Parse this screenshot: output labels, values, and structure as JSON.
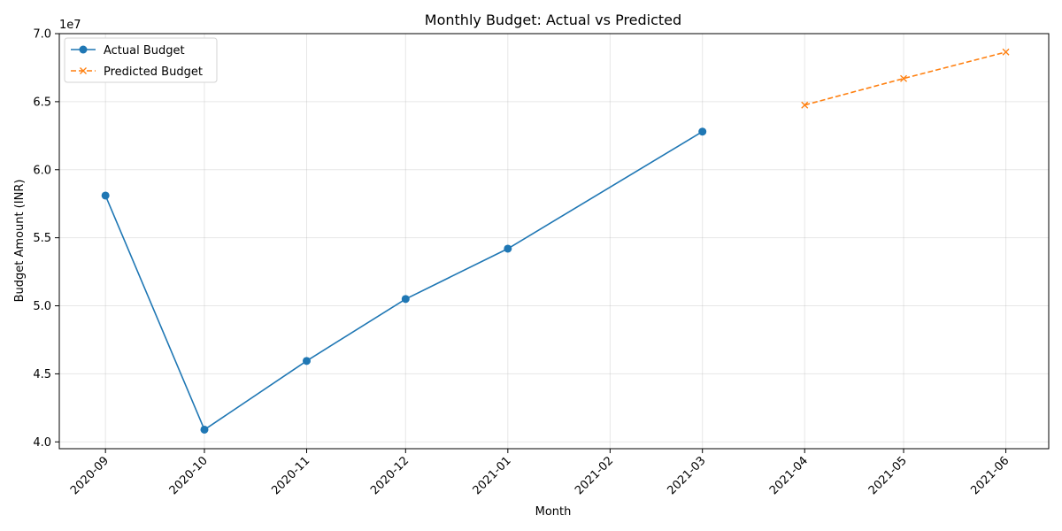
{
  "chart_data": {
    "type": "line",
    "title": "Monthly Budget: Actual vs Predicted",
    "xlabel": "Month",
    "ylabel": "Budget Amount (INR)",
    "y_offset_label": "1e7",
    "x_ticks": [
      "2020-09",
      "2020-10",
      "2020-11",
      "2020-12",
      "2021-01",
      "2021-02",
      "2021-03",
      "2021-04",
      "2021-05",
      "2021-06"
    ],
    "x_range": [
      "2020-08-18",
      "2021-06-14"
    ],
    "y_ticks": [
      "4.0",
      "4.5",
      "5.0",
      "5.5",
      "6.0",
      "6.5",
      "7.0"
    ],
    "ylim": [
      39500000,
      70000000
    ],
    "grid": true,
    "legend_position": "top-left",
    "series": [
      {
        "name": "Actual Budget",
        "color": "#1f77b4",
        "linestyle": "solid",
        "marker": "circle",
        "points": [
          {
            "x": "2020-09-01",
            "y": 58100000
          },
          {
            "x": "2020-10-01",
            "y": 40900000
          },
          {
            "x": "2020-11-01",
            "y": 45950000
          },
          {
            "x": "2020-12-01",
            "y": 50500000
          },
          {
            "x": "2021-01-01",
            "y": 54200000
          },
          {
            "x": "2021-03-01",
            "y": 62800000
          }
        ]
      },
      {
        "name": "Predicted Budget",
        "color": "#ff7f0e",
        "linestyle": "dashed",
        "marker": "x",
        "points": [
          {
            "x": "2021-04-01",
            "y": 64750000
          },
          {
            "x": "2021-05-01",
            "y": 66700000
          },
          {
            "x": "2021-06-01",
            "y": 68650000
          }
        ]
      }
    ]
  }
}
